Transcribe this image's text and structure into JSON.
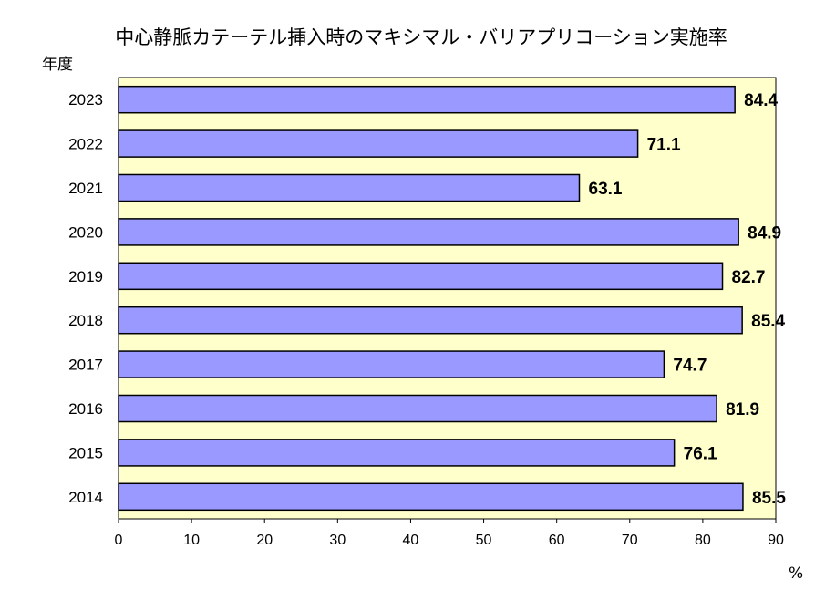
{
  "chart_data": {
    "type": "bar",
    "orientation": "horizontal",
    "title": "中心静脈カテーテル挿入時のマキシマル・バリアプリコーション実施率",
    "ylabel": "年度",
    "xlabel": "%",
    "categories": [
      "2023",
      "2022",
      "2021",
      "2020",
      "2019",
      "2018",
      "2017",
      "2016",
      "2015",
      "2014"
    ],
    "values": [
      84.4,
      71.1,
      63.1,
      84.9,
      82.7,
      85.4,
      74.7,
      81.9,
      76.1,
      85.5
    ],
    "data_labels": [
      "84.4",
      "71.1",
      "63.1",
      "84.9",
      "82.7",
      "85.4",
      "74.7",
      "81.9",
      "76.1",
      "85.5"
    ],
    "xlim": [
      0,
      90
    ],
    "xticks": [
      "0",
      "10",
      "20",
      "30",
      "40",
      "50",
      "60",
      "70",
      "80",
      "90"
    ],
    "grid": false,
    "colors": {
      "bar": "#9999ff",
      "plot_background": "#ffffcc",
      "outline": "#000000"
    }
  }
}
